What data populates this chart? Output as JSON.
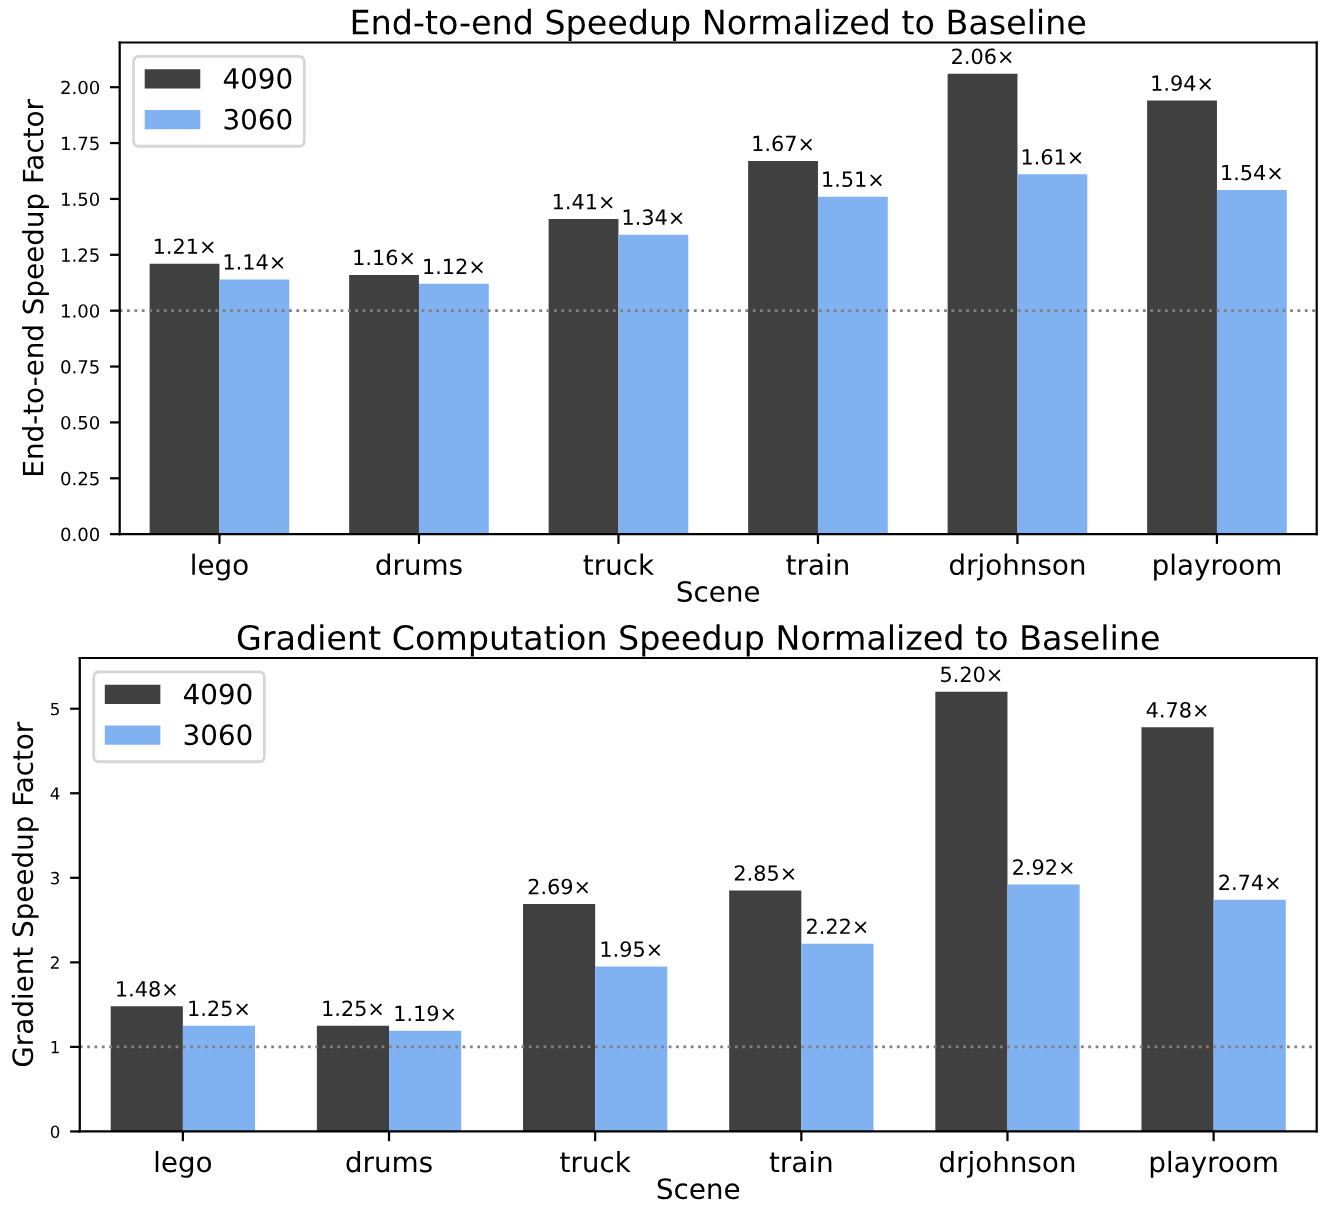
{
  "chart_data": [
    {
      "type": "bar",
      "title": "End-to-end Speedup Normalized to Baseline",
      "xlabel": "Scene",
      "ylabel": "End-to-end Speedup Factor",
      "categories": [
        "lego",
        "drums",
        "truck",
        "train",
        "drjohnson",
        "playroom"
      ],
      "series": [
        {
          "name": "4090",
          "color": "#404040",
          "values": [
            1.21,
            1.16,
            1.41,
            1.67,
            2.06,
            1.94
          ],
          "value_labels": [
            "1.21×",
            "1.16×",
            "1.41×",
            "1.67×",
            "2.06×",
            "1.94×"
          ]
        },
        {
          "name": "3060",
          "color": "#80b2f2",
          "values": [
            1.14,
            1.12,
            1.34,
            1.51,
            1.61,
            1.54
          ],
          "value_labels": [
            "1.14×",
            "1.12×",
            "1.34×",
            "1.51×",
            "1.61×",
            "1.54×"
          ]
        }
      ],
      "ylim": [
        0,
        2.2
      ],
      "yticks": [
        {
          "value": 0,
          "label": "0.00"
        },
        {
          "value": 0.25,
          "label": "0.25"
        },
        {
          "value": 0.5,
          "label": "0.50"
        },
        {
          "value": 0.75,
          "label": "0.75"
        },
        {
          "value": 1,
          "label": "1.00"
        },
        {
          "value": 1.25,
          "label": "1.25"
        },
        {
          "value": 1.5,
          "label": "1.50"
        },
        {
          "value": 1.75,
          "label": "1.75"
        },
        {
          "value": 2,
          "label": "2.00"
        }
      ],
      "ref_lines": [
        {
          "axis": "y",
          "value": 1,
          "color": "#808080",
          "line_style": "dotted"
        }
      ],
      "legend": "top left",
      "grid": false
    },
    {
      "type": "bar",
      "title": "Gradient Computation Speedup Normalized to Baseline",
      "xlabel": "Scene",
      "ylabel": "Gradient Speedup Factor",
      "categories": [
        "lego",
        "drums",
        "truck",
        "train",
        "drjohnson",
        "playroom"
      ],
      "series": [
        {
          "name": "4090",
          "color": "#404040",
          "values": [
            1.48,
            1.25,
            2.69,
            2.85,
            5.2,
            4.78
          ],
          "value_labels": [
            "1.48×",
            "1.25×",
            "2.69×",
            "2.85×",
            "5.20×",
            "4.78×"
          ]
        },
        {
          "name": "3060",
          "color": "#80b2f2",
          "values": [
            1.25,
            1.19,
            1.95,
            2.22,
            2.92,
            2.74
          ],
          "value_labels": [
            "1.25×",
            "1.19×",
            "1.95×",
            "2.22×",
            "2.92×",
            "2.74×"
          ]
        }
      ],
      "ylim": [
        0,
        5.6
      ],
      "yticks": [
        0,
        1,
        2,
        3,
        4,
        5
      ],
      "ref_lines": [
        {
          "axis": "y",
          "value": 1,
          "color": "#808080",
          "line_style": "dotted"
        }
      ],
      "legend": "top left",
      "grid": false
    }
  ]
}
